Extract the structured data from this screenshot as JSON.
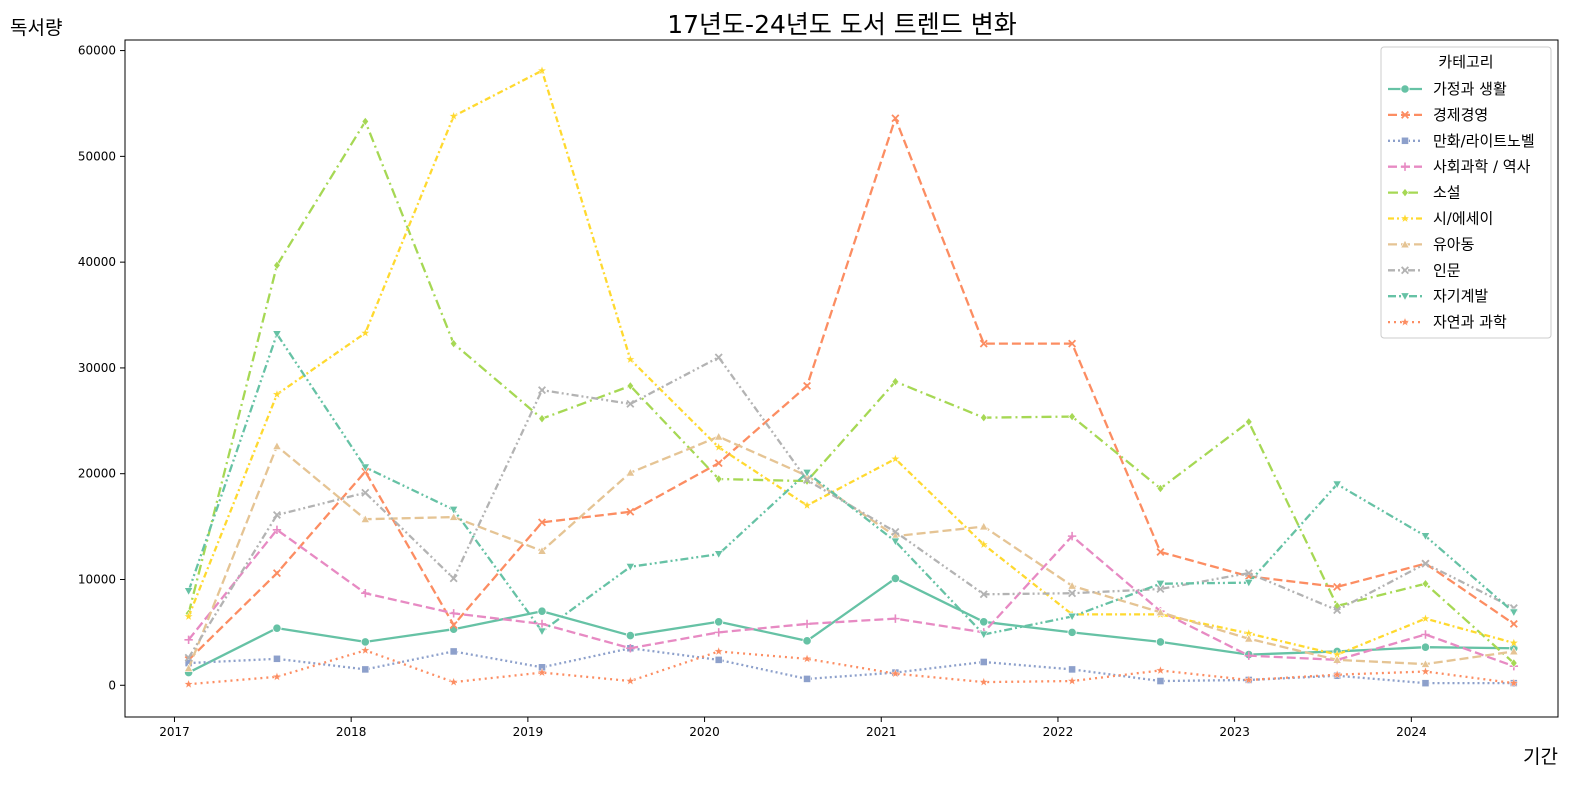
{
  "chart_data": {
    "type": "line",
    "title": "17년도-24년도 도서 트렌드 변화",
    "xlabel": "기간",
    "ylabel": "독서량",
    "x": [
      2017.08,
      2017.58,
      2018.08,
      2018.58,
      2019.08,
      2019.58,
      2020.08,
      2020.58,
      2021.08,
      2021.58,
      2022.08,
      2022.58,
      2023.08,
      2023.58,
      2024.08,
      2024.58
    ],
    "xlim": [
      2016.72,
      2024.83
    ],
    "ylim": [
      -3000,
      61000
    ],
    "x_ticks": [
      2017,
      2018,
      2019,
      2020,
      2021,
      2022,
      2023,
      2024
    ],
    "y_ticks": [
      0,
      10000,
      20000,
      30000,
      40000,
      50000,
      60000
    ],
    "grid": false,
    "legend_title": "카테고리",
    "legend_position": "top-right",
    "series": [
      {
        "name": "가정과 생활",
        "color": "#66c2a5",
        "dash": "solid",
        "marker": "circle",
        "values": [
          1200,
          5400,
          4100,
          5300,
          7000,
          4700,
          6000,
          4200,
          10100,
          6000,
          5000,
          4100,
          2900,
          3200,
          3600,
          3500
        ]
      },
      {
        "name": "경제경영",
        "color": "#fc8d62",
        "dash": "dashed",
        "marker": "x",
        "values": [
          2400,
          10600,
          20200,
          5700,
          15400,
          16400,
          21000,
          28300,
          53600,
          32300,
          32300,
          12600,
          10300,
          9300,
          11500,
          5800
        ]
      },
      {
        "name": "만화/라이트노벨",
        "color": "#8da0cb",
        "dash": "dotted",
        "marker": "square",
        "values": [
          2100,
          2500,
          1500,
          3200,
          1700,
          3500,
          2400,
          600,
          1200,
          2200,
          1500,
          400,
          500,
          900,
          200,
          200
        ]
      },
      {
        "name": "사회과학 / 역사",
        "color": "#e78ac3",
        "dash": "dashed",
        "marker": "plus",
        "values": [
          4300,
          14700,
          8700,
          6800,
          5800,
          3500,
          5000,
          5800,
          6300,
          5000,
          14100,
          7000,
          2800,
          2400,
          4800,
          1800
        ]
      },
      {
        "name": "소설",
        "color": "#a6d854",
        "dash": "dashdot",
        "marker": "diamond",
        "values": [
          6800,
          39700,
          53300,
          32300,
          25200,
          28300,
          19500,
          19300,
          28700,
          25300,
          25400,
          18600,
          24900,
          7500,
          9600,
          2100
        ]
      },
      {
        "name": "시/에세이",
        "color": "#ffd92f",
        "dash": "dashdot2",
        "marker": "star",
        "values": [
          6500,
          27500,
          33300,
          53800,
          58100,
          30800,
          22500,
          17000,
          21400,
          13300,
          6700,
          6700,
          4900,
          2900,
          6300,
          4000
        ]
      },
      {
        "name": "유아동",
        "color": "#e5c494",
        "dash": "dashed",
        "marker": "triangle-up",
        "values": [
          1600,
          22600,
          15700,
          15900,
          12700,
          20100,
          23500,
          19800,
          14100,
          15000,
          9400,
          6900,
          4400,
          2400,
          2000,
          3200
        ]
      },
      {
        "name": "인문",
        "color": "#b3b3b3",
        "dash": "dashdot3",
        "marker": "x",
        "values": [
          2600,
          16100,
          18200,
          10100,
          27900,
          26600,
          31000,
          19400,
          14500,
          8600,
          8700,
          9100,
          10600,
          7100,
          11500,
          7300
        ]
      },
      {
        "name": "자기계발",
        "color": "#66c2a5",
        "dash": "dashdotdot",
        "marker": "triangle-down",
        "values": [
          8900,
          33200,
          20600,
          16600,
          5100,
          11200,
          12400,
          20100,
          13600,
          4800,
          6500,
          9600,
          9700,
          19000,
          14100,
          6900
        ]
      },
      {
        "name": "자연과 과학",
        "color": "#fc8d62",
        "dash": "dotted2",
        "marker": "star",
        "values": [
          100,
          800,
          3300,
          300,
          1200,
          400,
          3200,
          2500,
          1100,
          300,
          400,
          1400,
          500,
          1000,
          1300,
          200
        ]
      }
    ]
  }
}
